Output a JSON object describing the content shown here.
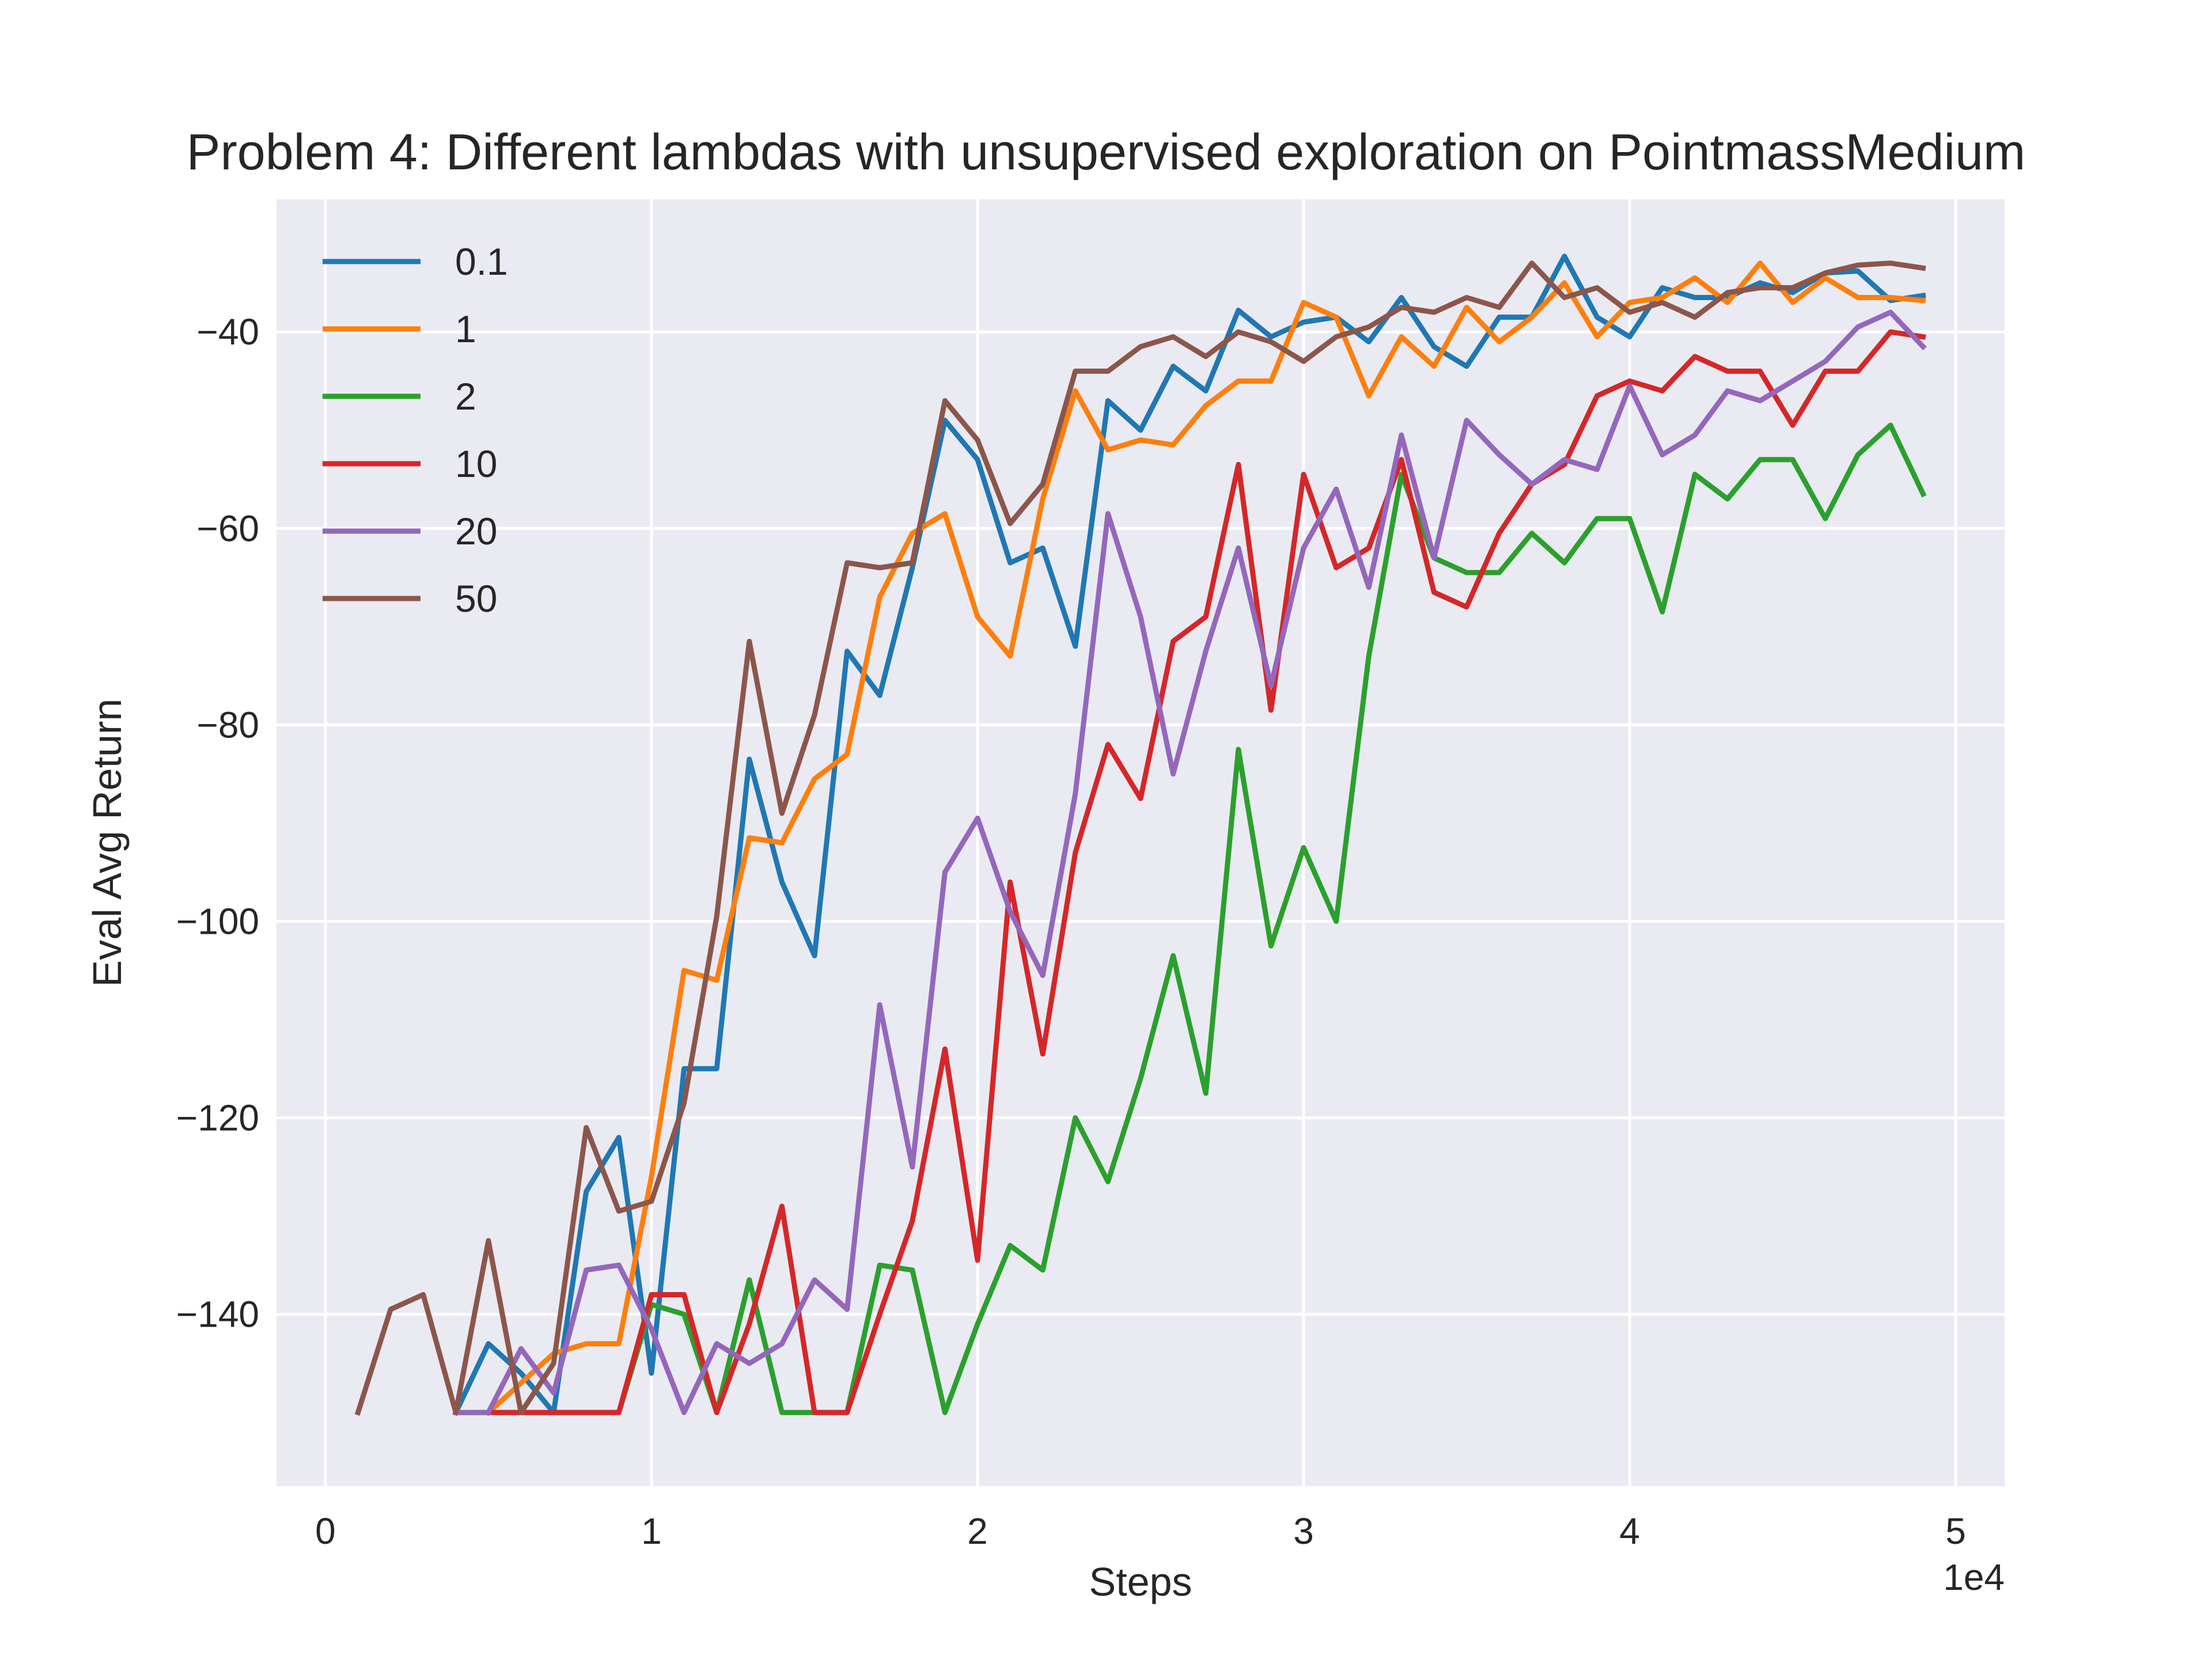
{
  "chart_data": {
    "type": "line",
    "title": "Problem 4: Different lambdas with unsupervised exploration on PointmassMedium",
    "xlabel": "Steps",
    "ylabel": "Eval Avg Return",
    "x_offset_text": "1e4",
    "x_tick_values": [
      0,
      10000,
      20000,
      30000,
      40000,
      50000
    ],
    "x_tick_labels": [
      "0",
      "1",
      "2",
      "3",
      "4",
      "5"
    ],
    "y_tick_values": [
      -140,
      -120,
      -100,
      -80,
      -60,
      -40
    ],
    "y_tick_labels": [
      "−140",
      "−120",
      "−100",
      "−80",
      "−60",
      "−40"
    ],
    "xlim": [
      -1500,
      51500
    ],
    "ylim": [
      -157.5,
      -26.5
    ],
    "grid": true,
    "legend_position": "top-left",
    "x": [
      1000,
      2000,
      3000,
      4000,
      5000,
      6000,
      7000,
      8000,
      9000,
      10000,
      11000,
      12000,
      13000,
      14000,
      15000,
      16000,
      17000,
      18000,
      19000,
      20000,
      21000,
      22000,
      23000,
      24000,
      25000,
      26000,
      27000,
      28000,
      29000,
      30000,
      31000,
      32000,
      33000,
      34000,
      35000,
      36000,
      37000,
      38000,
      39000,
      40000,
      41000,
      42000,
      43000,
      44000,
      45000,
      46000,
      47000,
      48000,
      49000
    ],
    "series": [
      {
        "name": "0.1",
        "color": "#1f77b4",
        "values": [
          null,
          null,
          null,
          -150,
          -143,
          -146,
          -150,
          -127.5,
          -122,
          -146,
          -115,
          -115,
          -83.5,
          -96,
          -103.5,
          -72.5,
          -77,
          -64,
          -49,
          -53,
          -63.5,
          -62,
          -72,
          -47,
          -50,
          -43.5,
          -46,
          -37.8,
          -40.5,
          -39,
          -38.5,
          -41,
          -36.5,
          -41.5,
          -43.5,
          -38.5,
          -38.5,
          -32.3,
          -38.5,
          -40.5,
          -35.5,
          -36.5,
          -36.5,
          -35,
          -36,
          -34,
          -33.8,
          -36.8,
          -36.3
        ]
      },
      {
        "name": "1",
        "color": "#ff7f0e",
        "values": [
          null,
          null,
          null,
          null,
          -150,
          -147,
          -144,
          -143,
          -143,
          -126,
          -105,
          -106,
          -91.5,
          -92,
          -85.5,
          -83,
          -67,
          -60.5,
          -58.5,
          -69,
          -73,
          -57,
          -46,
          -52,
          -51,
          -51.5,
          -47.5,
          -45,
          -45,
          -37,
          -38.5,
          -46.5,
          -40.5,
          -43.5,
          -37.5,
          -41,
          -38.5,
          -35,
          -40.5,
          -37,
          -36.5,
          -34.5,
          -37,
          -33,
          -37,
          -34.5,
          -36.5,
          -36.5,
          -36.8
        ]
      },
      {
        "name": "2",
        "color": "#2ca02c",
        "values": [
          null,
          null,
          null,
          -150,
          -150,
          -150,
          -150,
          -150,
          -150,
          -139,
          -140,
          -150,
          -136.5,
          -150,
          -150,
          -150,
          -135,
          -135.5,
          -150,
          -141,
          -133,
          -135.5,
          -120,
          -126.5,
          -116,
          -103.5,
          -117.5,
          -82.5,
          -102.5,
          -92.5,
          -100,
          -73,
          -54.5,
          -63,
          -64.5,
          -64.5,
          -60.5,
          -63.5,
          -59,
          -59,
          -68.5,
          -54.5,
          -57,
          -53,
          -53,
          -59,
          -52.5,
          -49.5,
          -56.5
        ]
      },
      {
        "name": "10",
        "color": "#d62728",
        "values": [
          null,
          null,
          null,
          null,
          -150,
          -150,
          -150,
          -150,
          -150,
          -138,
          -138,
          -150,
          -141,
          -129,
          -150,
          -150,
          -140,
          -130.5,
          -113,
          -134.5,
          -96,
          -113.5,
          -93,
          -82,
          -87.5,
          -71.5,
          -69,
          -53.5,
          -78.5,
          -54.5,
          -64,
          -62,
          -53,
          -66.5,
          -68,
          -60.5,
          -55.5,
          -53.5,
          -46.5,
          -45,
          -46,
          -42.5,
          -44,
          -44,
          -49.5,
          -44,
          -44,
          -40,
          -40.5
        ]
      },
      {
        "name": "20",
        "color": "#9467bd",
        "values": [
          null,
          null,
          null,
          -150,
          -150,
          -143.5,
          -148,
          -135.5,
          -135,
          -141.5,
          -150,
          -143,
          -145,
          -143,
          -136.5,
          -139.5,
          -108.5,
          -125,
          -95,
          -89.5,
          -99,
          -105.5,
          -87,
          -58.5,
          -69,
          -85,
          -72.5,
          -62,
          -76,
          -62,
          -56,
          -66,
          -50.5,
          -63,
          -49,
          -52.5,
          -55.5,
          -53,
          -54,
          -45.5,
          -52.5,
          -50.5,
          -46,
          -47,
          -45,
          -43,
          -39.5,
          -38,
          -41.5
        ]
      },
      {
        "name": "50",
        "color": "#8c564b",
        "values": [
          -150,
          -139.5,
          -138,
          -150,
          -132.5,
          -150,
          -145,
          -121,
          -129.5,
          -128.5,
          -118.5,
          -99.5,
          -71.5,
          -89,
          -79,
          -63.5,
          -64,
          -63.5,
          -47,
          -51,
          -59.5,
          -55.5,
          -44,
          -44,
          -41.5,
          -40.5,
          -42.5,
          -40,
          -41,
          -43,
          -40.5,
          -39.5,
          -37.5,
          -38,
          -36.5,
          -37.5,
          -33,
          -36.5,
          -35.5,
          -38,
          -37,
          -38.5,
          -36,
          -35.5,
          -35.5,
          -34,
          -33.2,
          -33,
          -33.5
        ]
      }
    ]
  }
}
